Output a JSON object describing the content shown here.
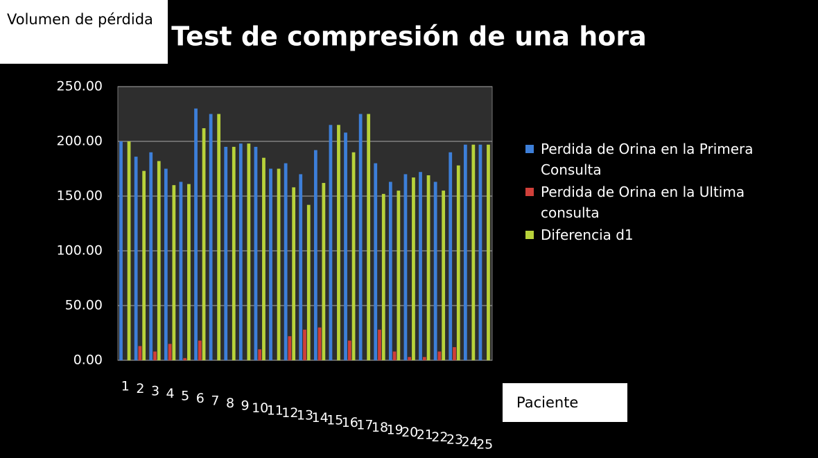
{
  "chart_data": {
    "type": "bar",
    "title": "Test de compresión de una hora",
    "y_label": "Volumen de pérdida",
    "x_label": "Paciente",
    "categories": [
      "1",
      "2",
      "3",
      "4",
      "5",
      "6",
      "7",
      "8",
      "9",
      "10",
      "11",
      "12",
      "13",
      "14",
      "15",
      "16",
      "17",
      "18",
      "19",
      "20",
      "21",
      "22",
      "23",
      "24",
      "25"
    ],
    "series": [
      {
        "name": "Perdida de Orina en la Primera Consulta",
        "color": "#3d7fd9",
        "values": [
          200,
          186,
          190,
          175,
          163,
          230,
          225,
          195,
          198,
          195,
          175,
          180,
          170,
          192,
          215,
          208,
          225,
          180,
          163,
          170,
          172,
          163,
          190,
          197,
          197
        ]
      },
      {
        "name": "Perdida de Orina en la Ultima consulta",
        "color": "#d0403a",
        "values": [
          0,
          13,
          8,
          15,
          2,
          18,
          0,
          0,
          0,
          10,
          0,
          22,
          28,
          30,
          0,
          18,
          0,
          28,
          8,
          3,
          3,
          8,
          12,
          0,
          0
        ]
      },
      {
        "name": "Diferencia d1",
        "color": "#b8d23a",
        "values": [
          200,
          173,
          182,
          160,
          161,
          212,
          225,
          195,
          198,
          185,
          175,
          158,
          142,
          162,
          215,
          190,
          225,
          152,
          155,
          167,
          169,
          155,
          178,
          197,
          197
        ]
      }
    ],
    "ylim": [
      0,
      250
    ],
    "yticks": [
      {
        "value": 0,
        "label": "0.00"
      },
      {
        "value": 50,
        "label": "50.00"
      },
      {
        "value": 100,
        "label": "100.00"
      },
      {
        "value": 150,
        "label": "150.00"
      },
      {
        "value": 200,
        "label": "200.00"
      },
      {
        "value": 250,
        "label": "250.00"
      }
    ],
    "grid": true
  }
}
